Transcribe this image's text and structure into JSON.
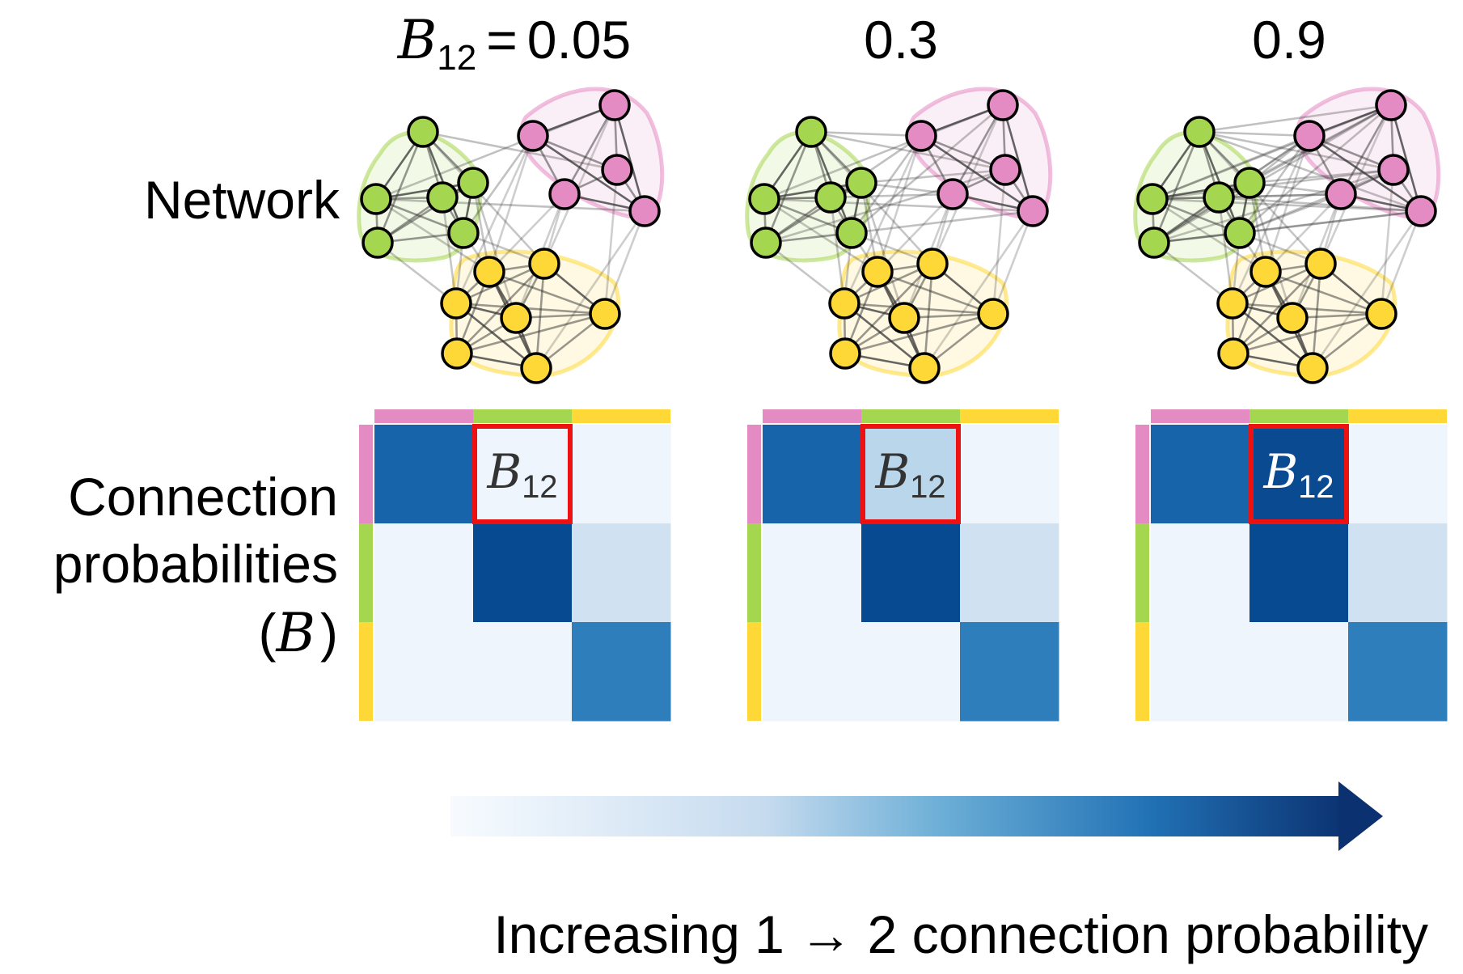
{
  "labels": {
    "network": "Network",
    "conn_line1": "Connection",
    "conn_line2": "probabilities",
    "conn_line3_open": "(",
    "conn_line3_B": "B",
    "conn_line3_close": ")",
    "arrow_caption": "Increasing 1 → 2 connection probability"
  },
  "panels": [
    {
      "header_B": "B",
      "header_sub": "12",
      "header_eq": "=",
      "header_value": "0.05",
      "value": 0.05,
      "cell_label": "B",
      "cell_sub": "12",
      "cell_text_color": "#333333"
    },
    {
      "header_value": "0.3",
      "value": 0.3,
      "cell_label": "B",
      "cell_sub": "12",
      "cell_text_color": "#333333"
    },
    {
      "header_value": "0.9",
      "value": 0.9,
      "cell_label": "B",
      "cell_sub": "12",
      "cell_text_color": "#ffffff"
    }
  ],
  "group_colors": {
    "pink": "#e58bc3",
    "green": "#a5d64f",
    "yellow": "#fdd836"
  },
  "matrix_colors": {
    "diag_11": "#1864aa",
    "diag_22": "#084a91",
    "diag_33": "#2e7ebc",
    "off_23": "#d0e1f1",
    "low": "#eef5fc",
    "b12_per_panel": [
      "#eef5fc",
      "#bad6eb",
      "#0a4a90"
    ],
    "highlight": "#ee1111"
  },
  "arrow_colors": {
    "start": "#f7fbff",
    "end": "#0b3170"
  }
}
